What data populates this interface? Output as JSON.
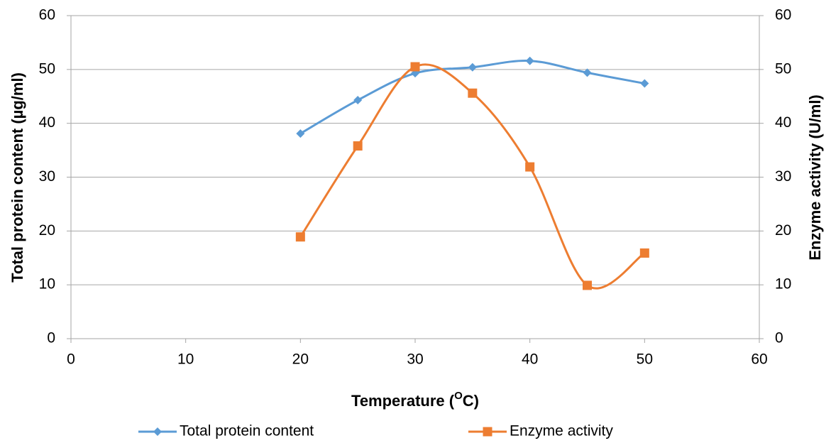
{
  "chart_data": {
    "type": "line",
    "x_label": [
      "Temperature (",
      "O",
      "C)"
    ],
    "y_label": "Total protein content (µg/ml)",
    "y2_label": "Enzyme activity (U/ml)",
    "x": [
      20,
      25,
      30,
      35,
      40,
      45,
      50
    ],
    "series": [
      {
        "name": "Total protein content",
        "color": "#5b9bd5",
        "marker": "diamond",
        "values": [
          38.1,
          44.3,
          49.3,
          50.4,
          51.6,
          49.4,
          47.4
        ]
      },
      {
        "name": "Enzyme activity",
        "color": "#ed7d31",
        "marker": "square",
        "axis": "y2",
        "values": [
          18.9,
          35.8,
          50.5,
          45.6,
          31.9,
          9.9,
          15.9
        ]
      }
    ],
    "xlim": [
      0,
      60
    ],
    "xticks": [
      0,
      10,
      20,
      30,
      40,
      50,
      60
    ],
    "ylim": [
      0,
      60
    ],
    "yticks": [
      0,
      10,
      20,
      30,
      40,
      50,
      60
    ],
    "y2lim": [
      0,
      60
    ],
    "y2ticks": [
      0,
      10,
      20,
      30,
      40,
      50,
      60
    ],
    "grid": true,
    "smooth": true,
    "legend": "bottom"
  }
}
